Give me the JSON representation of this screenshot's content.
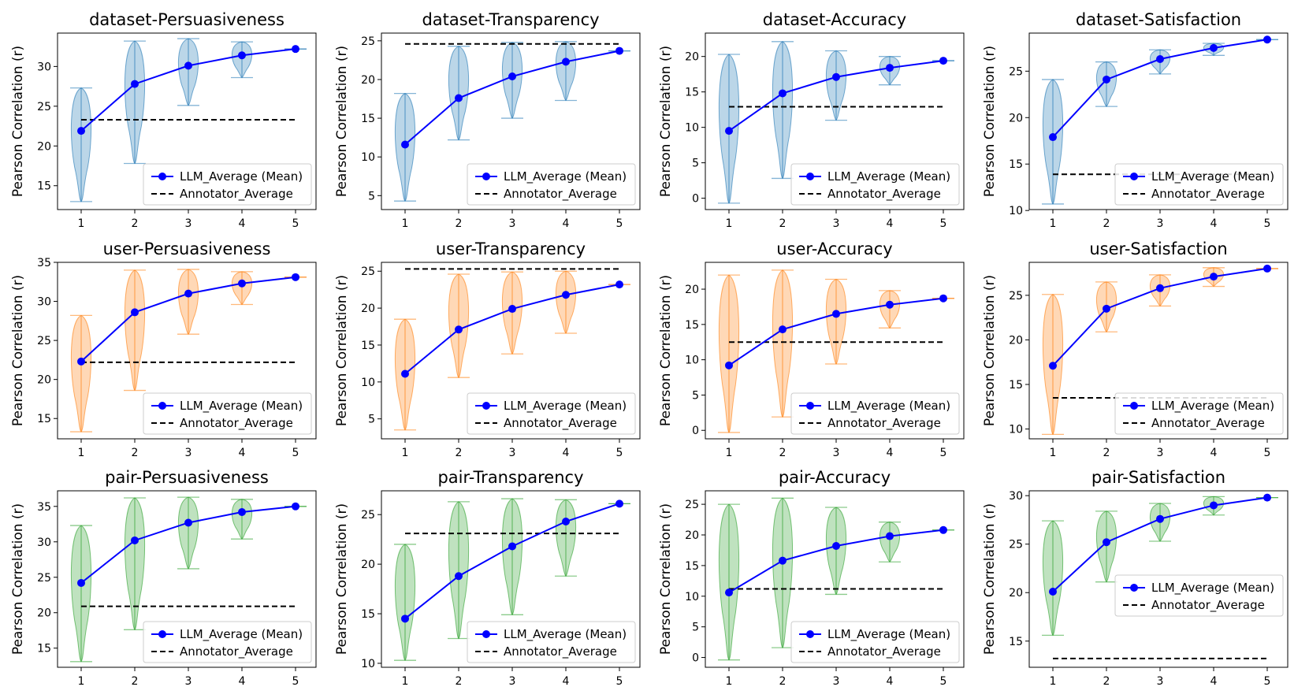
{
  "ylabel": "Pearson Correlation (r)",
  "legend": {
    "llm": "LLM_Average (Mean)",
    "annotator": "Annotator_Average"
  },
  "colors": {
    "dataset": "#1f77b4",
    "user": "#ff7f0e",
    "pair": "#2ca02c",
    "llm_line": "#0000ff",
    "annotator_line": "#000000"
  },
  "chart_data": [
    {
      "type": "line",
      "title": "dataset-Persuasiveness",
      "x": [
        1,
        2,
        3,
        4,
        5
      ],
      "llm_mean": [
        21.9,
        27.8,
        30.1,
        31.4,
        32.2
      ],
      "annotator_average": 23.3,
      "violins": [
        [
          13.0,
          27.3
        ],
        [
          17.8,
          33.2
        ],
        [
          25.1,
          33.5
        ],
        [
          28.6,
          33.1
        ],
        [
          32.2,
          32.2
        ]
      ],
      "ylim": [
        12,
        34.2
      ],
      "yticks": [
        15,
        20,
        25,
        30
      ],
      "legend_loc": "lower right"
    },
    {
      "type": "line",
      "title": "dataset-Transparency",
      "x": [
        1,
        2,
        3,
        4,
        5
      ],
      "llm_mean": [
        11.6,
        17.6,
        20.4,
        22.3,
        23.7
      ],
      "annotator_average": 24.6,
      "violins": [
        [
          4.3,
          18.2
        ],
        [
          12.2,
          24.3
        ],
        [
          15.0,
          24.8
        ],
        [
          17.3,
          24.9
        ],
        [
          23.7,
          23.7
        ]
      ],
      "ylim": [
        3.2,
        26
      ],
      "yticks": [
        5,
        10,
        15,
        20,
        25
      ],
      "legend_loc": "lower right"
    },
    {
      "type": "line",
      "title": "dataset-Accuracy",
      "x": [
        1,
        2,
        3,
        4,
        5
      ],
      "llm_mean": [
        9.5,
        14.8,
        17.1,
        18.4,
        19.4
      ],
      "annotator_average": 12.9,
      "violins": [
        [
          -0.7,
          20.3
        ],
        [
          2.8,
          22.1
        ],
        [
          11.0,
          20.8
        ],
        [
          16.0,
          20.0
        ],
        [
          19.4,
          19.4
        ]
      ],
      "ylim": [
        -1.6,
        23.3
      ],
      "yticks": [
        0,
        5,
        10,
        15,
        20
      ],
      "legend_loc": "lower right"
    },
    {
      "type": "line",
      "title": "dataset-Satisfaction",
      "x": [
        1,
        2,
        3,
        4,
        5
      ],
      "llm_mean": [
        17.9,
        24.1,
        26.3,
        27.5,
        28.4
      ],
      "annotator_average": 13.9,
      "violins": [
        [
          10.7,
          24.1
        ],
        [
          21.2,
          26.0
        ],
        [
          24.7,
          27.3
        ],
        [
          26.7,
          28.0
        ],
        [
          28.4,
          28.4
        ]
      ],
      "ylim": [
        10.1,
        29.1
      ],
      "yticks": [
        10,
        15,
        20,
        25
      ],
      "legend_loc": "lower right"
    },
    {
      "type": "line",
      "title": "user-Persuasiveness",
      "x": [
        1,
        2,
        3,
        4,
        5
      ],
      "llm_mean": [
        22.3,
        28.6,
        31.0,
        32.3,
        33.1
      ],
      "annotator_average": 22.2,
      "violins": [
        [
          13.3,
          28.2
        ],
        [
          18.6,
          34.0
        ],
        [
          25.8,
          34.1
        ],
        [
          29.6,
          33.8
        ],
        [
          33.1,
          33.1
        ]
      ],
      "ylim": [
        12.4,
        35
      ],
      "yticks": [
        15,
        20,
        25,
        30,
        35
      ],
      "legend_loc": "lower right"
    },
    {
      "type": "line",
      "title": "user-Transparency",
      "x": [
        1,
        2,
        3,
        4,
        5
      ],
      "llm_mean": [
        11.1,
        17.1,
        19.9,
        21.8,
        23.2
      ],
      "annotator_average": 25.3,
      "violins": [
        [
          3.5,
          18.5
        ],
        [
          10.6,
          24.6
        ],
        [
          13.8,
          24.9
        ],
        [
          16.6,
          25.0
        ],
        [
          23.2,
          23.2
        ]
      ],
      "ylim": [
        2.3,
        26.2
      ],
      "yticks": [
        5,
        10,
        15,
        20,
        25
      ],
      "legend_loc": "lower right"
    },
    {
      "type": "line",
      "title": "user-Accuracy",
      "x": [
        1,
        2,
        3,
        4,
        5
      ],
      "llm_mean": [
        9.2,
        14.3,
        16.5,
        17.8,
        18.7
      ],
      "annotator_average": 12.5,
      "violins": [
        [
          -0.3,
          22.0
        ],
        [
          1.9,
          22.7
        ],
        [
          9.4,
          21.4
        ],
        [
          14.5,
          19.8
        ],
        [
          18.7,
          18.7
        ]
      ],
      "ylim": [
        -1.2,
        23.8
      ],
      "yticks": [
        0,
        5,
        10,
        15,
        20
      ],
      "legend_loc": "lower right"
    },
    {
      "type": "line",
      "title": "user-Satisfaction",
      "x": [
        1,
        2,
        3,
        4,
        5
      ],
      "llm_mean": [
        17.1,
        23.5,
        25.8,
        27.1,
        28.0
      ],
      "annotator_average": 13.5,
      "violins": [
        [
          9.4,
          25.1
        ],
        [
          20.9,
          26.5
        ],
        [
          23.8,
          27.3
        ],
        [
          26.0,
          28.1
        ],
        [
          28.0,
          28.0
        ]
      ],
      "ylim": [
        8.9,
        28.7
      ],
      "yticks": [
        10,
        15,
        20,
        25
      ],
      "legend_loc": "lower right"
    },
    {
      "type": "line",
      "title": "pair-Persuasiveness",
      "x": [
        1,
        2,
        3,
        4,
        5
      ],
      "llm_mean": [
        24.2,
        30.2,
        32.7,
        34.2,
        35.0
      ],
      "annotator_average": 20.9,
      "violins": [
        [
          13.1,
          32.3
        ],
        [
          17.6,
          36.2
        ],
        [
          26.2,
          36.3
        ],
        [
          30.4,
          36.0
        ],
        [
          35.0,
          35.0
        ]
      ],
      "ylim": [
        12.3,
        37.2
      ],
      "yticks": [
        15,
        20,
        25,
        30,
        35
      ],
      "legend_loc": "lower right"
    },
    {
      "type": "line",
      "title": "pair-Transparency",
      "x": [
        1,
        2,
        3,
        4,
        5
      ],
      "llm_mean": [
        14.5,
        18.8,
        21.8,
        24.3,
        26.1
      ],
      "annotator_average": 23.1,
      "violins": [
        [
          10.3,
          22.0
        ],
        [
          12.5,
          26.3
        ],
        [
          14.9,
          26.6
        ],
        [
          18.8,
          26.5
        ],
        [
          26.1,
          26.1
        ]
      ],
      "ylim": [
        9.6,
        27.4
      ],
      "yticks": [
        10,
        15,
        20,
        25
      ],
      "legend_loc": "lower right"
    },
    {
      "type": "line",
      "title": "pair-Accuracy",
      "x": [
        1,
        2,
        3,
        4,
        5
      ],
      "llm_mean": [
        10.6,
        15.8,
        18.2,
        19.8,
        20.8
      ],
      "annotator_average": 11.2,
      "violins": [
        [
          -0.4,
          25.0
        ],
        [
          1.6,
          26.0
        ],
        [
          10.3,
          24.5
        ],
        [
          15.6,
          22.1
        ],
        [
          20.8,
          20.8
        ]
      ],
      "ylim": [
        -1.6,
        27.2
      ],
      "yticks": [
        0,
        5,
        10,
        15,
        20,
        25
      ],
      "legend_loc": "lower right"
    },
    {
      "type": "line",
      "title": "pair-Satisfaction",
      "x": [
        1,
        2,
        3,
        4,
        5
      ],
      "llm_mean": [
        20.1,
        25.2,
        27.6,
        29.0,
        29.8
      ],
      "annotator_average": 13.2,
      "violins": [
        [
          15.6,
          27.4
        ],
        [
          21.1,
          28.4
        ],
        [
          25.3,
          29.2
        ],
        [
          28.0,
          29.9
        ],
        [
          29.8,
          29.8
        ]
      ],
      "ylim": [
        12.3,
        30.5
      ],
      "yticks": [
        15,
        20,
        25,
        30
      ],
      "legend_loc": "center right"
    }
  ]
}
